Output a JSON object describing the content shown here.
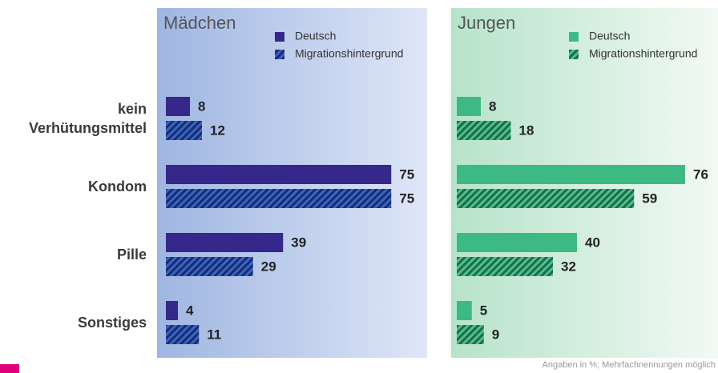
{
  "chart_data": [
    {
      "type": "hbar",
      "title": "Mädchen",
      "categories": [
        "kein Verhütungsmittel",
        "Kondom",
        "Pille",
        "Sonstiges"
      ],
      "series": [
        {
          "name": "Deutsch",
          "color": "#35288a",
          "values": [
            8,
            75,
            39,
            4
          ]
        },
        {
          "name": "Migrationshintergrund",
          "color": "#3566c4",
          "hatch": true,
          "hatch_color": "#1c2a6e",
          "values": [
            12,
            75,
            29,
            11
          ]
        }
      ],
      "xlim": [
        0,
        80
      ],
      "background": [
        "#9fb6e2",
        "#dfe6f7"
      ]
    },
    {
      "type": "hbar",
      "title": "Jungen",
      "series": [
        {
          "name": "Deutsch",
          "color": "#3dba84",
          "values": [
            8,
            76,
            40,
            5
          ]
        },
        {
          "name": "Migrationshintergrund",
          "color": "#4cc08f",
          "hatch": true,
          "hatch_color": "#1f6b48",
          "values": [
            18,
            59,
            32,
            9
          ]
        }
      ],
      "xlim": [
        0,
        80
      ],
      "background": [
        "#b7e3ca",
        "#f3faf5"
      ]
    }
  ],
  "footnote": "Angaben in %; Mehrfachnennungen möglich"
}
